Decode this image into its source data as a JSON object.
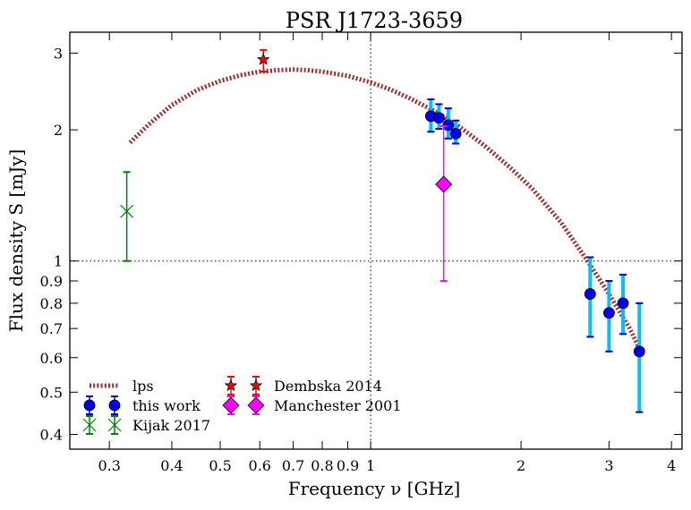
{
  "chart_data": {
    "type": "scatter",
    "title": "PSR J1723-3659",
    "xlabel": "Frequency ν [GHz]",
    "ylabel": "Flux density S [mJy]",
    "xscale": "log",
    "yscale": "log",
    "xlim": [
      0.25,
      4.2
    ],
    "ylim": [
      0.37,
      3.35
    ],
    "x_ticks": [
      0.3,
      0.4,
      0.5,
      0.6,
      0.7,
      0.8,
      0.9,
      1,
      2,
      3,
      4
    ],
    "x_tick_labels": [
      "0.3",
      "0.4",
      "0.5",
      "0.6",
      "0.7",
      "0.8",
      "0.9",
      "1",
      "2",
      "3",
      "4"
    ],
    "y_ticks": [
      0.4,
      0.5,
      0.6,
      0.7,
      0.8,
      0.9,
      1,
      2,
      3
    ],
    "y_tick_labels": [
      "0.4",
      "0.5",
      "0.6",
      "0.7",
      "0.8",
      "0.9",
      "1",
      "2",
      "3"
    ],
    "reference_lines": {
      "x": 1,
      "y": 1,
      "style": "dotted"
    },
    "legend_position": "lower-left",
    "legend_columns": 2,
    "series": [
      {
        "name": "lps",
        "kind": "model_curve",
        "color": "#a52a2a",
        "x": [
          0.33,
          0.36,
          0.4,
          0.45,
          0.5,
          0.55,
          0.6,
          0.65,
          0.7,
          0.75,
          0.8,
          0.9,
          1.0,
          1.1,
          1.2,
          1.35,
          1.5,
          1.7,
          1.9,
          2.1,
          2.4,
          2.7,
          3.0,
          3.3,
          3.45
        ],
        "y": [
          1.87,
          2.06,
          2.28,
          2.47,
          2.59,
          2.67,
          2.72,
          2.74,
          2.75,
          2.74,
          2.72,
          2.66,
          2.57,
          2.47,
          2.36,
          2.2,
          2.04,
          1.83,
          1.64,
          1.47,
          1.23,
          1.01,
          0.84,
          0.7,
          0.63
        ]
      },
      {
        "name": "this work",
        "kind": "points",
        "color": "#0000ee",
        "errcolor": "#00bfff",
        "x": [
          1.32,
          1.37,
          1.43,
          1.48,
          2.75,
          3.0,
          3.2,
          3.45
        ],
        "y": [
          2.15,
          2.13,
          2.05,
          1.96,
          0.84,
          0.76,
          0.8,
          0.62
        ],
        "yerr_low": [
          1.98,
          2.01,
          1.91,
          1.86,
          0.67,
          0.62,
          0.68,
          0.45
        ],
        "yerr_high": [
          2.35,
          2.29,
          2.24,
          2.1,
          1.02,
          0.9,
          0.93,
          0.8
        ]
      },
      {
        "name": "Kijak 2017",
        "kind": "points",
        "color": "#008000",
        "x": [
          0.325
        ],
        "y": [
          1.3
        ],
        "yerr_low": [
          1.0
        ],
        "yerr_high": [
          1.6
        ]
      },
      {
        "name": "Dembska 2014",
        "kind": "points",
        "color": "#ff0000",
        "x": [
          0.61
        ],
        "y": [
          2.9
        ],
        "yerr_low": [
          2.72
        ],
        "yerr_high": [
          3.05
        ]
      },
      {
        "name": "Manchester 2001",
        "kind": "points",
        "color": "#ff00ff",
        "x": [
          1.4
        ],
        "y": [
          1.5
        ],
        "yerr_low": [
          0.9
        ],
        "yerr_high": [
          2.04
        ]
      }
    ]
  }
}
